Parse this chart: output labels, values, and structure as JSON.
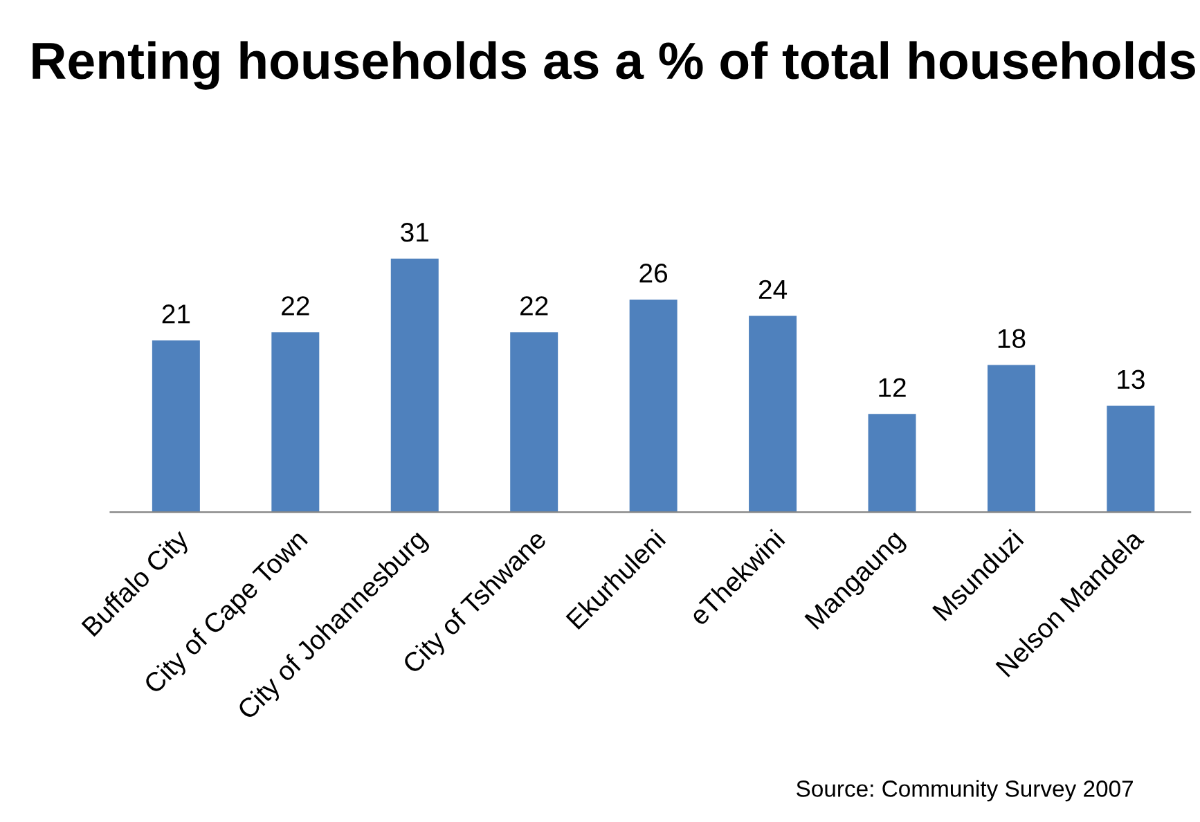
{
  "chart_data": {
    "type": "bar",
    "title": "Renting households as a % of total households",
    "categories": [
      "Buffalo City",
      "City of Cape Town",
      "City of Johannesburg",
      "City of Tshwane",
      "Ekurhuleni",
      "eThekwini",
      "Mangaung",
      "Msunduzi",
      "Nelson Mandela"
    ],
    "values": [
      21,
      22,
      31,
      22,
      26,
      24,
      12,
      18,
      13
    ],
    "color": "#4f81bd",
    "data_labels": true,
    "annotations": [
      "Source: Community Survey 2007"
    ]
  }
}
